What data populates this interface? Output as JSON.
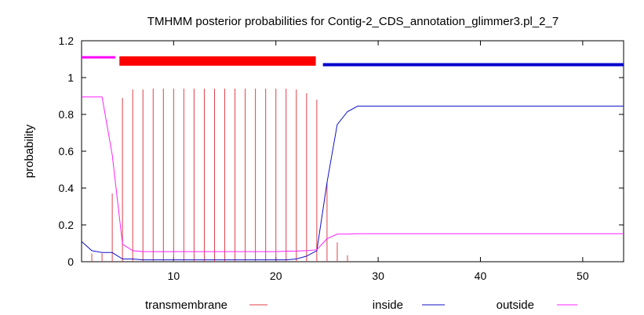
{
  "chart_data": {
    "type": "line",
    "title": "TMHMM posterior probabilities for Contig-2_CDS_annotation_glimmer3.pl_2_7",
    "xlabel": "",
    "ylabel": "probability",
    "xlim": [
      1,
      54
    ],
    "ylim": [
      0,
      1.2
    ],
    "x_ticks": [
      10,
      20,
      30,
      40,
      50
    ],
    "y_ticks": [
      0,
      0.2,
      0.4,
      0.6,
      0.8,
      1,
      1.2
    ],
    "y_tick_labels": [
      "0",
      "0.2",
      "0.4",
      "0.6",
      "0.8",
      "1",
      "1.2"
    ],
    "grid": false,
    "legend_position": "bottom",
    "x": [
      1,
      2,
      3,
      4,
      5,
      6,
      7,
      8,
      9,
      10,
      11,
      12,
      13,
      14,
      15,
      16,
      17,
      18,
      19,
      20,
      21,
      22,
      23,
      24,
      25,
      26,
      27,
      28,
      29,
      30,
      31,
      32,
      33,
      34,
      35,
      36,
      37,
      38,
      39,
      40,
      41,
      42,
      43,
      44,
      45,
      46,
      47,
      48,
      49,
      50,
      51,
      52,
      53,
      54
    ],
    "series": [
      {
        "name": "transmembrane",
        "style": "impulses",
        "color": "#e0404a",
        "values": [
          0.0,
          0.045,
          0.045,
          0.37,
          0.89,
          0.935,
          0.935,
          0.94,
          0.94,
          0.94,
          0.94,
          0.94,
          0.94,
          0.94,
          0.94,
          0.94,
          0.94,
          0.94,
          0.94,
          0.94,
          0.94,
          0.935,
          0.915,
          0.88,
          0.43,
          0.105,
          0.035,
          0.0,
          0,
          0,
          0,
          0,
          0,
          0,
          0,
          0,
          0,
          0,
          0,
          0,
          0,
          0,
          0,
          0,
          0,
          0,
          0,
          0,
          0,
          0,
          0,
          0,
          0,
          0
        ]
      },
      {
        "name": "inside",
        "style": "line",
        "color": "#1010c8",
        "values": [
          0.11,
          0.06,
          0.05,
          0.05,
          0.015,
          0.015,
          0.01,
          0.01,
          0.01,
          0.01,
          0.01,
          0.01,
          0.01,
          0.01,
          0.01,
          0.01,
          0.01,
          0.01,
          0.01,
          0.01,
          0.01,
          0.015,
          0.03,
          0.06,
          0.43,
          0.745,
          0.815,
          0.845,
          0.845,
          0.845,
          0.845,
          0.845,
          0.845,
          0.845,
          0.845,
          0.845,
          0.845,
          0.845,
          0.845,
          0.845,
          0.845,
          0.845,
          0.845,
          0.845,
          0.845,
          0.845,
          0.845,
          0.845,
          0.845,
          0.845,
          0.845,
          0.845,
          0.845,
          0.845
        ]
      },
      {
        "name": "outside",
        "style": "line",
        "color": "#ff20ff",
        "values": [
          0.895,
          0.895,
          0.895,
          0.58,
          0.095,
          0.06,
          0.055,
          0.055,
          0.055,
          0.055,
          0.055,
          0.055,
          0.055,
          0.055,
          0.055,
          0.055,
          0.055,
          0.055,
          0.055,
          0.055,
          0.057,
          0.058,
          0.06,
          0.065,
          0.125,
          0.15,
          0.15,
          0.152,
          0.152,
          0.152,
          0.152,
          0.152,
          0.152,
          0.152,
          0.152,
          0.152,
          0.152,
          0.152,
          0.152,
          0.152,
          0.152,
          0.152,
          0.152,
          0.152,
          0.152,
          0.152,
          0.152,
          0.152,
          0.152,
          0.152,
          0.152,
          0.152,
          0.152,
          0.152
        ]
      }
    ],
    "topology_bars": [
      {
        "region": "outside",
        "x_start": 1,
        "x_end": 4.3,
        "y": 1.11,
        "thickness": "thin",
        "color": "#ff00ff"
      },
      {
        "region": "transmembrane",
        "x_start": 4.7,
        "x_end": 23.9,
        "y": 1.09,
        "thickness": "thick",
        "color": "#ff0000"
      },
      {
        "region": "inside",
        "x_start": 24.6,
        "x_end": 54,
        "y": 1.07,
        "thickness": "medium",
        "color": "#0000cc"
      }
    ]
  }
}
